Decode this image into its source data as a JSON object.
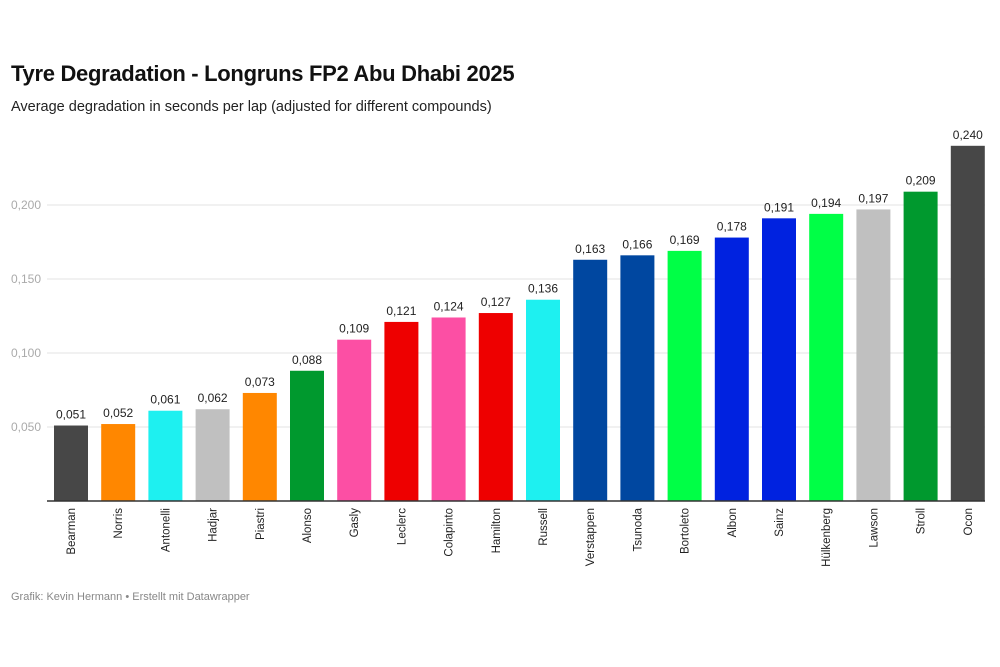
{
  "chart_data": {
    "type": "bar",
    "title": "Tyre Degradation - Longruns FP2 Abu Dhabi 2025",
    "subtitle": "Average degradation in seconds per lap (adjusted for different compounds)",
    "xlabel": "",
    "ylabel": "",
    "ylim": [
      0,
      0.24
    ],
    "yticks": [
      0.05,
      0.1,
      0.15,
      0.2
    ],
    "ytick_labels": [
      "0,050",
      "0,100",
      "0,150",
      "0,200"
    ],
    "grid": true,
    "categories": [
      "Bearman",
      "Norris",
      "Antonelli",
      "Hadjar",
      "Piastri",
      "Alonso",
      "Gasly",
      "Leclerc",
      "Colapinto",
      "Hamilton",
      "Russell",
      "Verstappen",
      "Tsunoda",
      "Bortoleto",
      "Albon",
      "Sainz",
      "Hülkenberg",
      "Lawson",
      "Stroll",
      "Ocon"
    ],
    "values": [
      0.051,
      0.052,
      0.061,
      0.062,
      0.073,
      0.088,
      0.109,
      0.121,
      0.124,
      0.127,
      0.136,
      0.163,
      0.166,
      0.169,
      0.178,
      0.191,
      0.194,
      0.197,
      0.209,
      0.24
    ],
    "value_labels": [
      "0,051",
      "0,052",
      "0,061",
      "0,062",
      "0,073",
      "0,088",
      "0,109",
      "0,121",
      "0,124",
      "0,127",
      "0,136",
      "0,163",
      "0,166",
      "0,169",
      "0,178",
      "0,191",
      "0,194",
      "0,197",
      "0,209",
      "0,240"
    ],
    "colors": [
      "#474747",
      "#ff8700",
      "#1ef0f0",
      "#c0c0c0",
      "#ff8700",
      "#00992e",
      "#fc4fa4",
      "#ee0000",
      "#fc4fa4",
      "#ee0000",
      "#1ef0f0",
      "#0047a0",
      "#0047a0",
      "#00ff46",
      "#0022e0",
      "#0022e0",
      "#00ff46",
      "#c0c0c0",
      "#00992e",
      "#474747"
    ]
  },
  "footer": "Grafik: Kevin Hermann • Erstellt mit Datawrapper"
}
